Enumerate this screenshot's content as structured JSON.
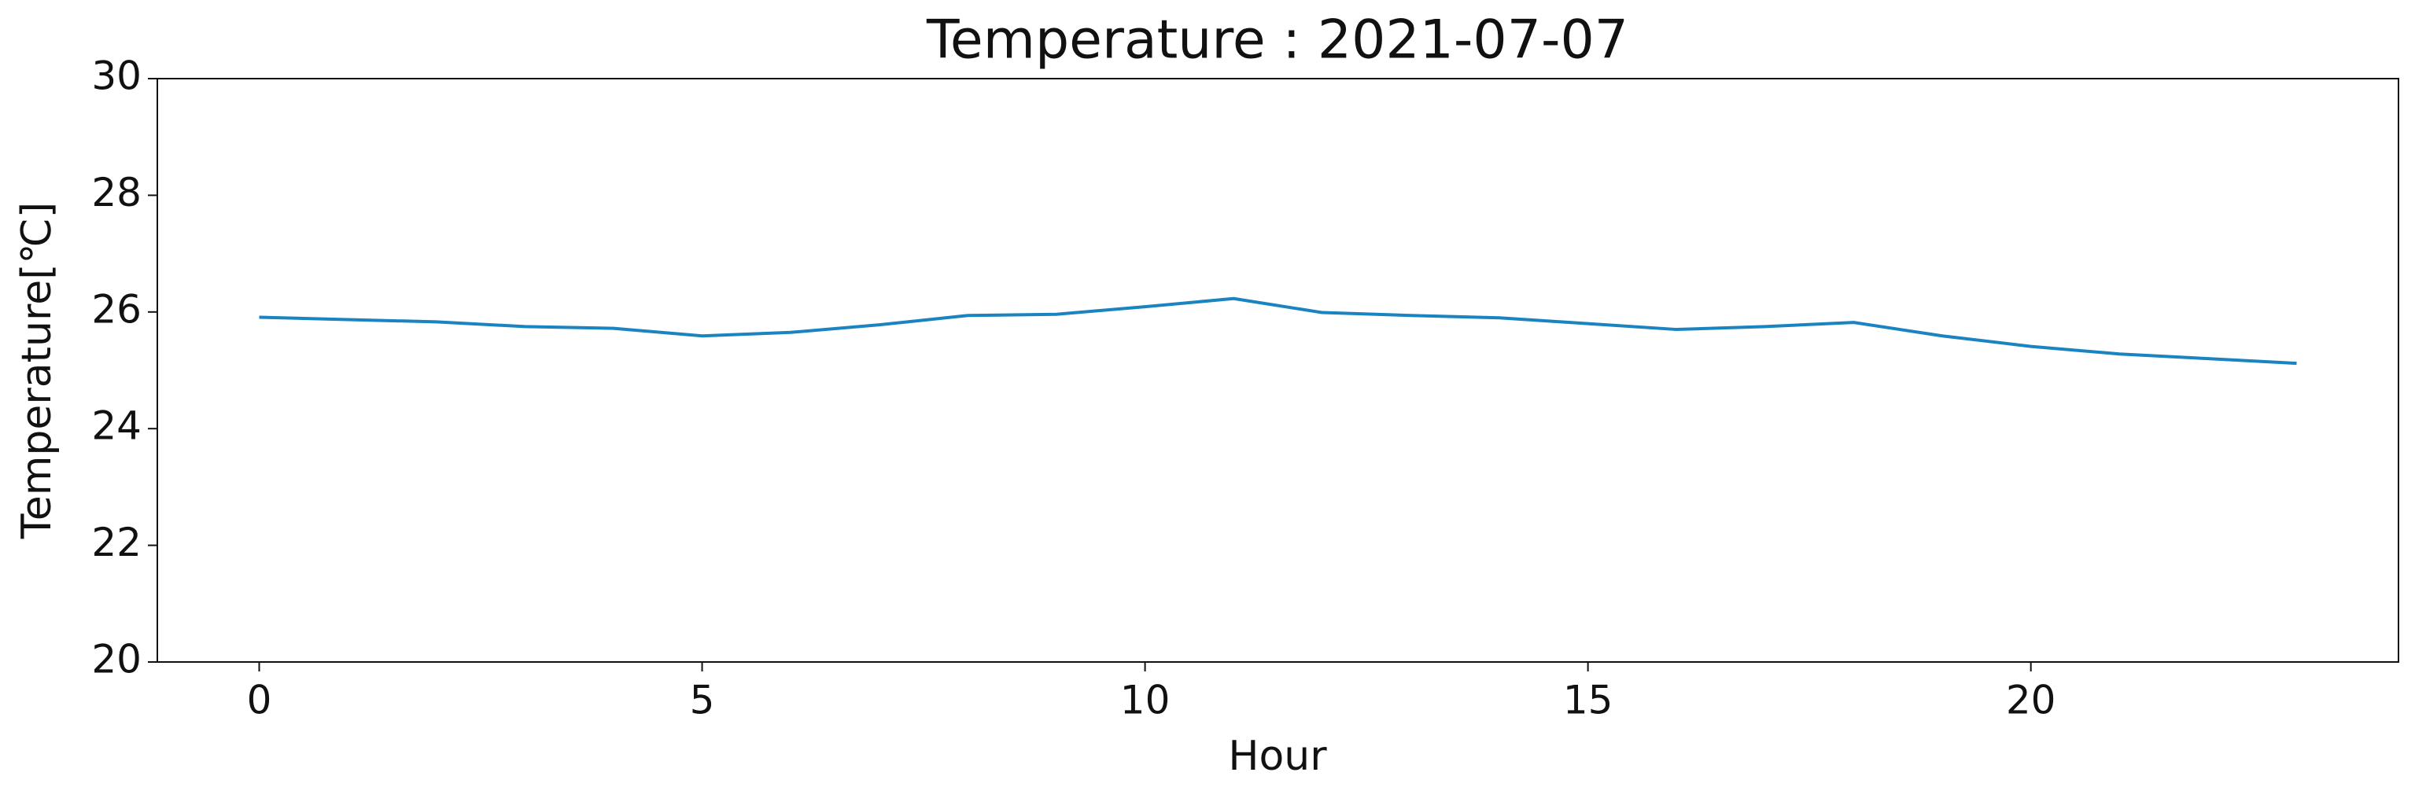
{
  "chart_data": {
    "type": "line",
    "title": "Temperature : 2021-07-07",
    "x_label": "Hour",
    "y_label": "Temperature[℃]",
    "x": [
      0,
      1,
      2,
      3,
      4,
      5,
      6,
      7,
      8,
      9,
      10,
      11,
      12,
      13,
      14,
      15,
      16,
      17,
      18,
      19,
      20,
      21,
      22,
      23
    ],
    "series": [
      {
        "name": "Temperature",
        "color": "#1a83c0",
        "values": [
          25.91,
          25.87,
          25.83,
          25.75,
          25.72,
          25.59,
          25.65,
          25.78,
          25.94,
          25.96,
          26.09,
          26.23,
          25.99,
          25.94,
          25.9,
          25.8,
          25.7,
          25.75,
          25.82,
          25.59,
          25.41,
          25.28,
          25.2,
          25.12
        ]
      }
    ],
    "xlim": [
      -1.15,
      24.15
    ],
    "xticks": [
      0,
      5,
      10,
      15,
      20
    ],
    "ylim": [
      20,
      30
    ],
    "yticks": [
      20,
      22,
      24,
      26,
      28,
      30
    ],
    "grid": false
  }
}
